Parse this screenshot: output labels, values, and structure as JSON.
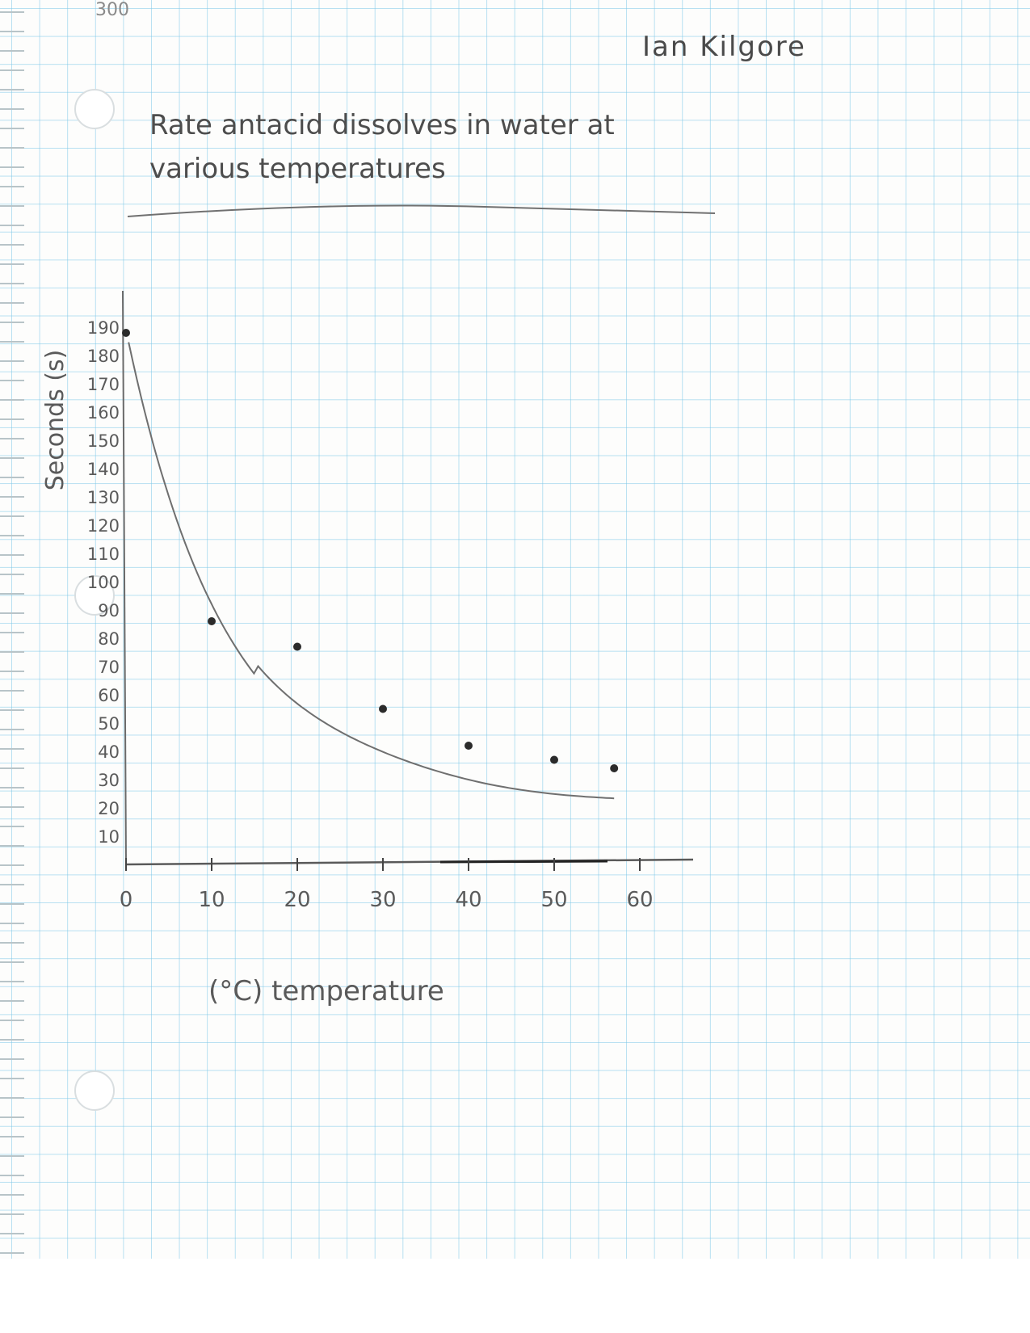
{
  "page": {
    "corner_label": "300",
    "author": "Ian Kilgore"
  },
  "chart_data": {
    "type": "scatter",
    "title": "Rate antacid dissolves in water at various temperatures",
    "xlabel": "(°C) temperature",
    "ylabel": "Seconds (s)",
    "x_ticks": [
      0,
      10,
      20,
      30,
      40,
      50,
      60
    ],
    "y_ticks": [
      190,
      180,
      170,
      160,
      150,
      140,
      130,
      120,
      110,
      100,
      90,
      80,
      70,
      60,
      50,
      40,
      30,
      20,
      10
    ],
    "xlim": [
      0,
      60
    ],
    "ylim": [
      0,
      190
    ],
    "grid": true,
    "trend_line": "curved best-fit line",
    "series": [
      {
        "x": [
          0,
          10,
          20,
          30,
          40,
          50,
          57
        ],
        "y": [
          188,
          86,
          77,
          55,
          42,
          37,
          34
        ]
      }
    ],
    "colors": {
      "ink": "#2b2b2b",
      "pencil": "#6b6b6b",
      "grid": "#7ec8e8"
    }
  }
}
